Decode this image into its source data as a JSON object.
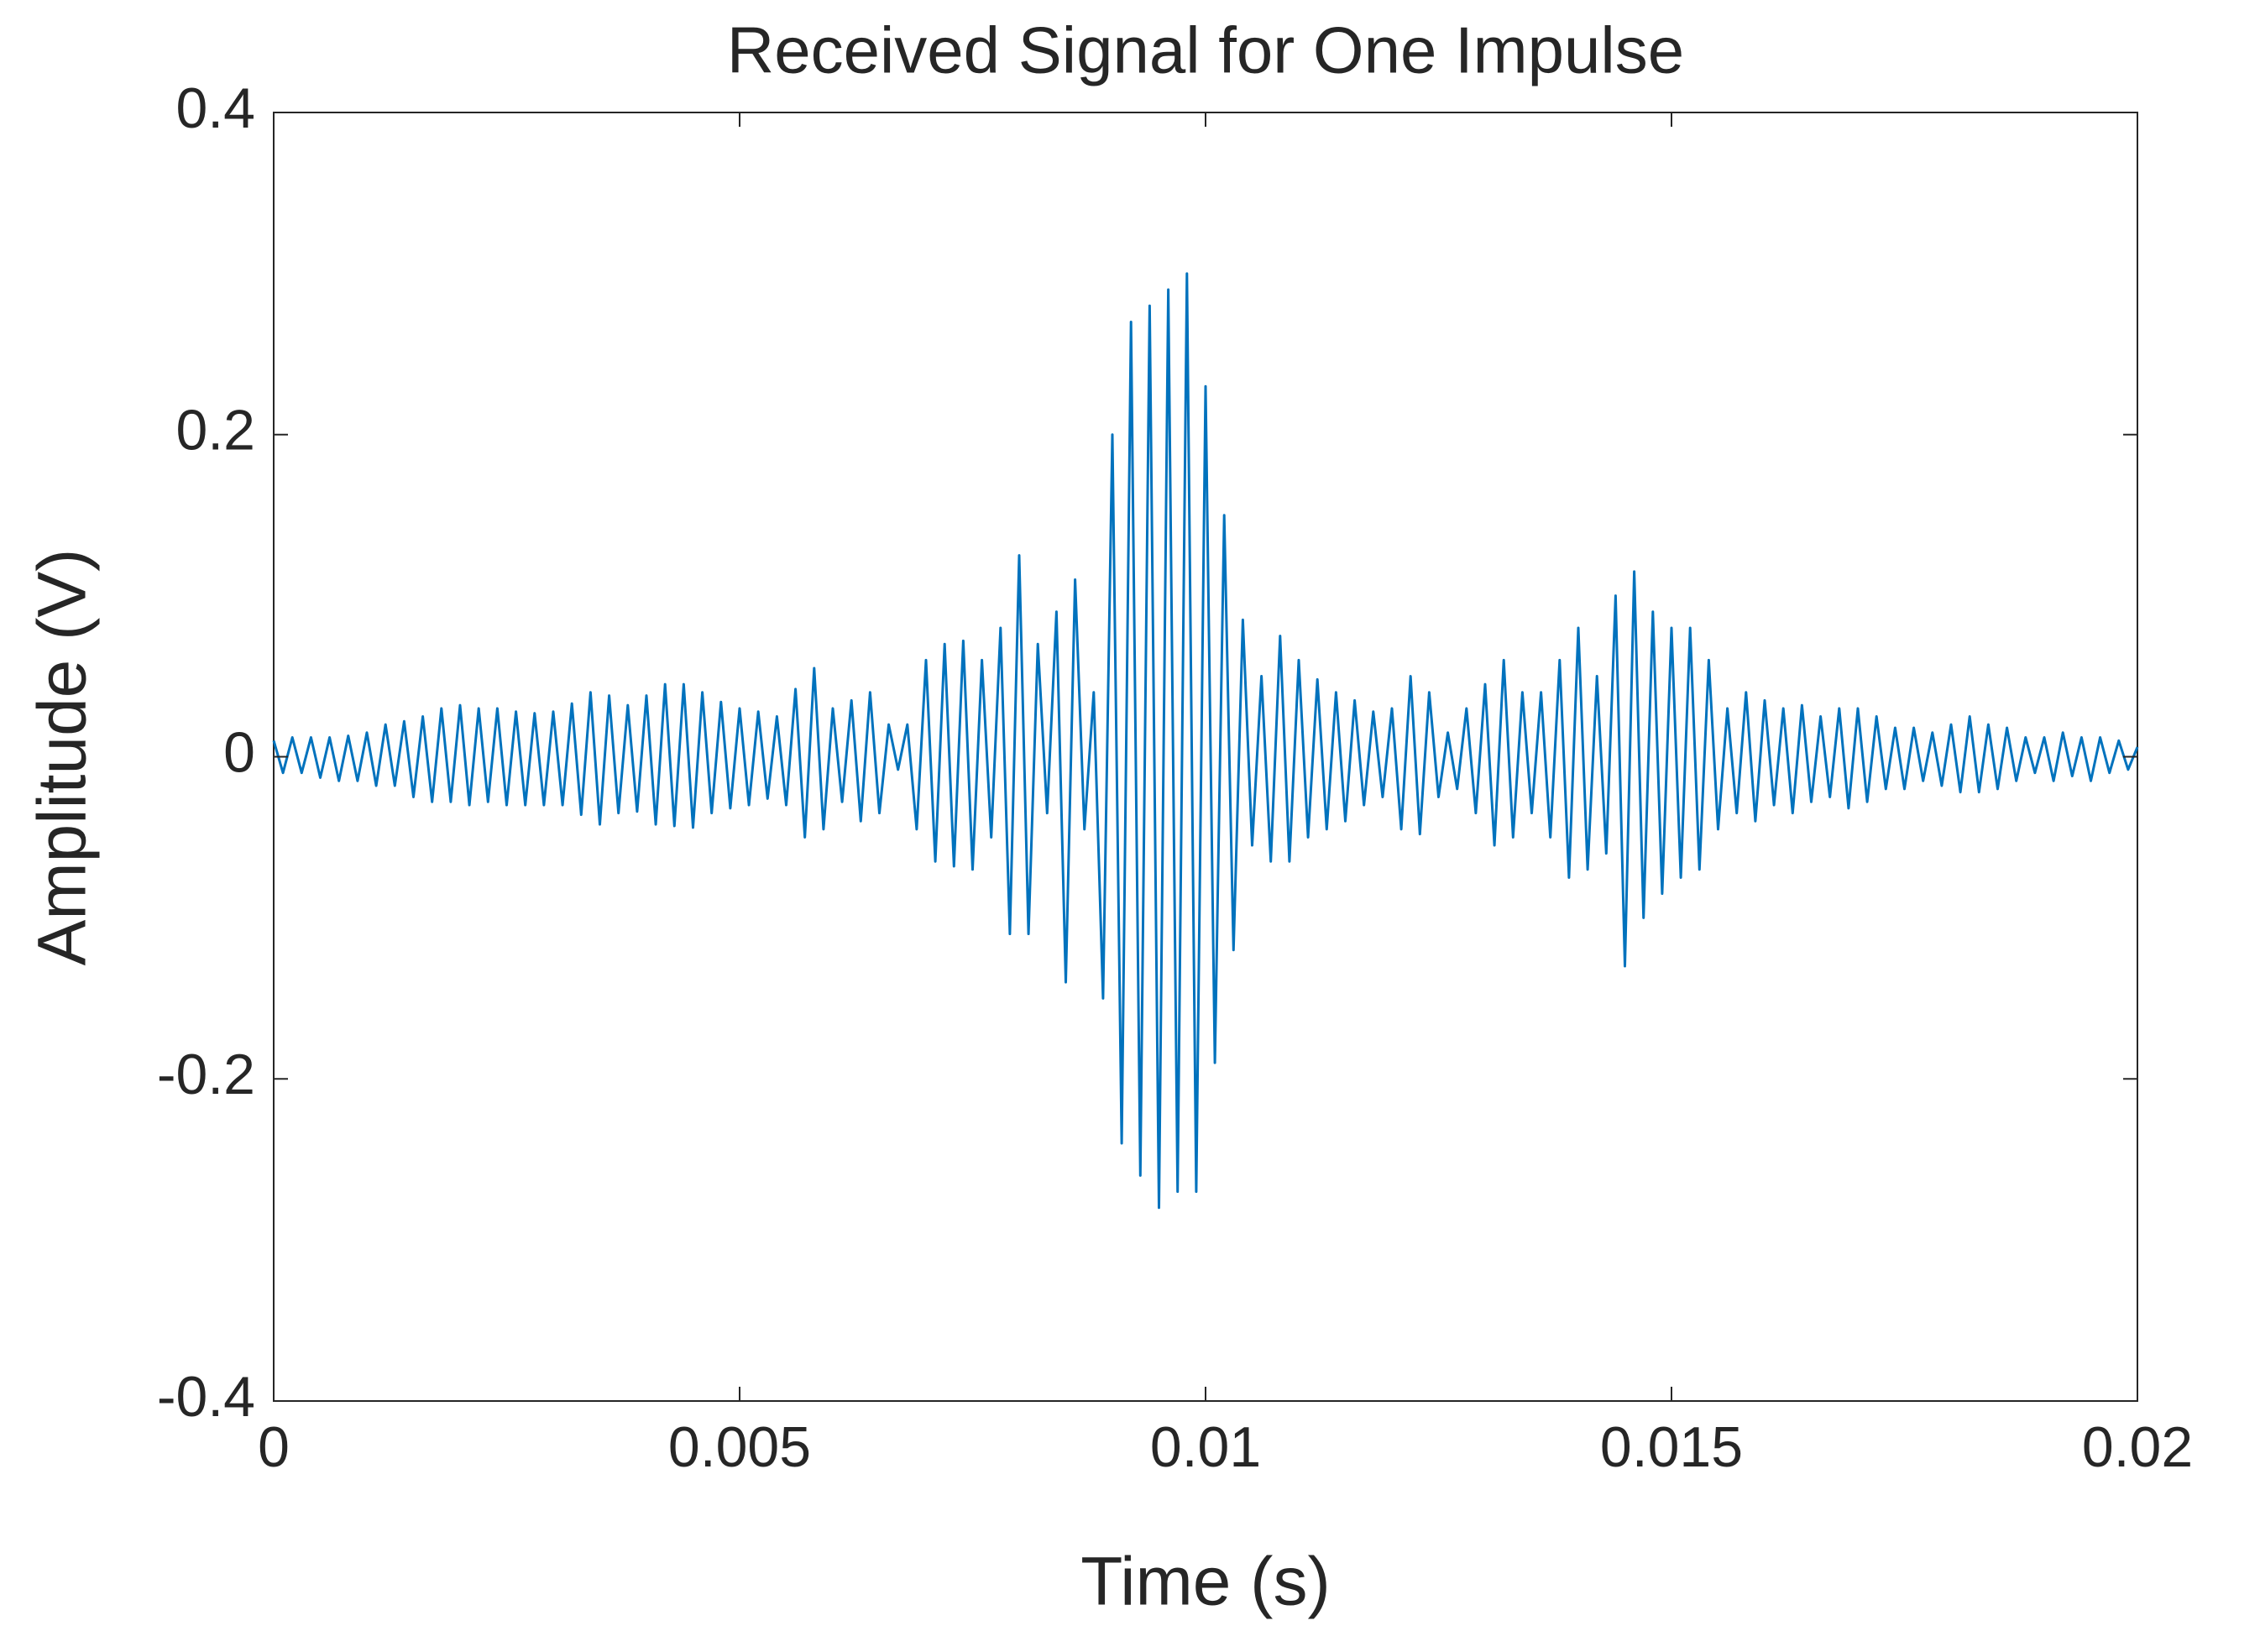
{
  "chart_data": {
    "type": "line",
    "title": "Received Signal for One Impulse",
    "xlabel": "Time (s)",
    "ylabel": "Amplitude (V)",
    "color": "#0072bd",
    "xlim": [
      0,
      0.02
    ],
    "ylim": [
      -0.4,
      0.4
    ],
    "xticks": [
      0,
      0.005,
      0.01,
      0.015,
      0.02
    ],
    "yticks": [
      -0.4,
      -0.2,
      0,
      0.2,
      0.4
    ],
    "x": [
      0,
      0.0001,
      0.0002,
      0.0003,
      0.0004,
      0.0005,
      0.0006,
      0.0007,
      0.0008,
      0.0009,
      0.001,
      0.0011,
      0.0012,
      0.0013,
      0.0014,
      0.0015,
      0.0016,
      0.0017,
      0.0018,
      0.0019,
      0.002,
      0.0021,
      0.0022,
      0.0023,
      0.0024,
      0.0025,
      0.0026,
      0.0027,
      0.0028,
      0.0029,
      0.003,
      0.0031,
      0.0032,
      0.0033,
      0.0034,
      0.0035,
      0.0036,
      0.0037,
      0.0038,
      0.0039,
      0.004,
      0.0041,
      0.0042,
      0.0043,
      0.0044,
      0.0045,
      0.0046,
      0.0047,
      0.0048,
      0.0049,
      0.005,
      0.0051,
      0.0052,
      0.0053,
      0.0054,
      0.0055,
      0.0056,
      0.0057,
      0.0058,
      0.0059,
      0.006,
      0.0061,
      0.0062,
      0.0063,
      0.0064,
      0.0065,
      0.0066,
      0.0067,
      0.0068,
      0.0069,
      0.007,
      0.0071,
      0.0072,
      0.0073,
      0.0074,
      0.0075,
      0.0076,
      0.0077,
      0.0078,
      0.0079,
      0.008,
      0.0081,
      0.0082,
      0.0083,
      0.0084,
      0.0085,
      0.0086,
      0.0087,
      0.0088,
      0.0089,
      0.009,
      0.0091,
      0.0092,
      0.0093,
      0.0094,
      0.0095,
      0.0096,
      0.0097,
      0.0098,
      0.0099,
      0.01,
      0.0101,
      0.0102,
      0.0103,
      0.0104,
      0.0105,
      0.0106,
      0.0107,
      0.0108,
      0.0109,
      0.011,
      0.0111,
      0.0112,
      0.0113,
      0.0114,
      0.0115,
      0.0116,
      0.0117,
      0.0118,
      0.0119,
      0.012,
      0.0121,
      0.0122,
      0.0123,
      0.0124,
      0.0125,
      0.0126,
      0.0127,
      0.0128,
      0.0129,
      0.013,
      0.0131,
      0.0132,
      0.0133,
      0.0134,
      0.0135,
      0.0136,
      0.0137,
      0.0138,
      0.0139,
      0.014,
      0.0141,
      0.0142,
      0.0143,
      0.0144,
      0.0145,
      0.0146,
      0.0147,
      0.0148,
      0.0149,
      0.015,
      0.0151,
      0.0152,
      0.0153,
      0.0154,
      0.0155,
      0.0156,
      0.0157,
      0.0158,
      0.0159,
      0.016,
      0.0161,
      0.0162,
      0.0163,
      0.0164,
      0.0165,
      0.0166,
      0.0167,
      0.0168,
      0.0169,
      0.017,
      0.0171,
      0.0172,
      0.0173,
      0.0174,
      0.0175,
      0.0176,
      0.0177,
      0.0178,
      0.0179,
      0.018,
      0.0181,
      0.0182,
      0.0183,
      0.0184,
      0.0185,
      0.0186,
      0.0187,
      0.0188,
      0.0189,
      0.019,
      0.0191,
      0.0192,
      0.0193,
      0.0194,
      0.0195,
      0.0196,
      0.0197,
      0.0198,
      0.0199,
      0.02
    ],
    "values": [
      0.01,
      -0.01,
      0.012,
      -0.01,
      0.012,
      -0.013,
      0.012,
      -0.015,
      0.013,
      -0.015,
      0.015,
      -0.018,
      0.02,
      -0.018,
      0.022,
      -0.025,
      0.025,
      -0.028,
      0.03,
      -0.028,
      0.032,
      -0.03,
      0.03,
      -0.028,
      0.03,
      -0.03,
      0.028,
      -0.03,
      0.027,
      -0.03,
      0.028,
      -0.03,
      0.033,
      -0.036,
      0.04,
      -0.042,
      0.038,
      -0.035,
      0.032,
      -0.034,
      0.038,
      -0.042,
      0.045,
      -0.043,
      0.045,
      -0.044,
      0.04,
      -0.035,
      0.034,
      -0.032,
      0.03,
      -0.03,
      0.028,
      -0.026,
      0.025,
      -0.03,
      0.042,
      -0.05,
      0.055,
      -0.045,
      0.03,
      -0.028,
      0.035,
      -0.04,
      0.04,
      -0.035,
      0.02,
      -0.008,
      0.02,
      -0.045,
      0.06,
      -0.065,
      0.07,
      -0.068,
      0.072,
      -0.07,
      0.06,
      -0.05,
      0.08,
      -0.11,
      0.125,
      -0.11,
      0.07,
      -0.035,
      0.09,
      -0.14,
      0.11,
      -0.045,
      0.04,
      -0.15,
      0.2,
      -0.24,
      0.27,
      -0.26,
      0.28,
      -0.28,
      0.29,
      -0.27,
      0.3,
      -0.27,
      0.23,
      -0.19,
      0.15,
      -0.12,
      0.085,
      -0.055,
      0.05,
      -0.065,
      0.075,
      -0.065,
      0.06,
      -0.05,
      0.048,
      -0.045,
      0.04,
      -0.04,
      0.035,
      -0.03,
      0.028,
      -0.025,
      0.03,
      -0.045,
      0.05,
      -0.048,
      0.04,
      -0.025,
      0.015,
      -0.02,
      0.03,
      -0.035,
      0.045,
      -0.055,
      0.06,
      -0.05,
      0.04,
      -0.035,
      0.04,
      -0.05,
      0.06,
      -0.075,
      0.08,
      -0.07,
      0.05,
      -0.06,
      0.1,
      -0.13,
      0.115,
      -0.1,
      0.09,
      -0.085,
      0.08,
      -0.075,
      0.08,
      -0.07,
      0.06,
      -0.045,
      0.03,
      -0.035,
      0.04,
      -0.04,
      0.035,
      -0.03,
      0.03,
      -0.035,
      0.032,
      -0.028,
      0.025,
      -0.025,
      0.03,
      -0.032,
      0.03,
      -0.028,
      0.025,
      -0.02,
      0.018,
      -0.02,
      0.018,
      -0.015,
      0.015,
      -0.018,
      0.02,
      -0.022,
      0.025,
      -0.022,
      0.02,
      -0.02,
      0.018,
      -0.015,
      0.012,
      -0.01,
      0.012,
      -0.015,
      0.015,
      -0.012,
      0.012,
      -0.015,
      0.012,
      -0.01,
      0.01,
      -0.008,
      0.006
    ]
  }
}
